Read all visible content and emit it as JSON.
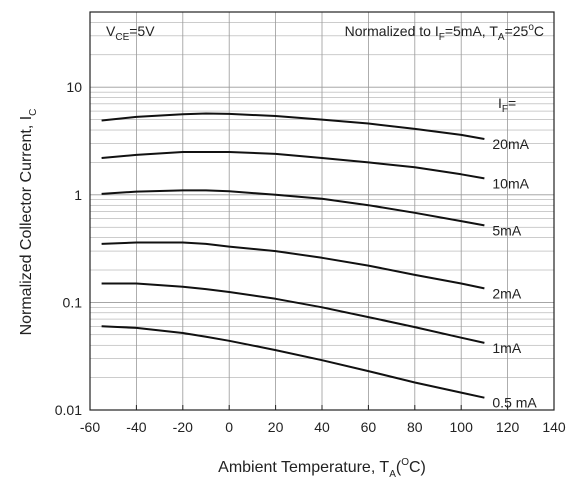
{
  "chart_data": {
    "type": "line",
    "title": "",
    "xlabel": {
      "main": "Ambient Temperature, T",
      "sub": "A",
      "pre": "(",
      "sup": "O",
      "post": "C)"
    },
    "ylabel": {
      "main": "Normalized Collector Current, I",
      "sub": "C"
    },
    "xlim": [
      -60,
      140
    ],
    "ylim": [
      0.01,
      50
    ],
    "yscale": "log",
    "grid": true,
    "x_ticks": [
      "-60",
      "-40",
      "-20",
      "0",
      "20",
      "40",
      "60",
      "80",
      "100",
      "120",
      "140"
    ],
    "y_ticks": [
      "0.01",
      "0.1",
      "1",
      "10"
    ],
    "annotations": {
      "vce": {
        "main": "V",
        "sub": "CE",
        "rest": "=5V"
      },
      "normalized": {
        "p1": "Normalized to I",
        "s1": "F",
        "p2": "=5mA, T",
        "s2": "A",
        "p3": "=25",
        "sup": "o",
        "p4": "C"
      },
      "if_label": {
        "main": "I",
        "sub": "F",
        "rest": "="
      }
    },
    "series": [
      {
        "name": "20mA",
        "x": [
          -55,
          -40,
          -20,
          -10,
          0,
          20,
          40,
          60,
          80,
          100,
          110
        ],
        "y": [
          4.9,
          5.3,
          5.6,
          5.7,
          5.65,
          5.4,
          5.0,
          4.6,
          4.1,
          3.6,
          3.3
        ]
      },
      {
        "name": "10mA",
        "x": [
          -55,
          -40,
          -20,
          -10,
          0,
          20,
          40,
          60,
          80,
          100,
          110
        ],
        "y": [
          2.2,
          2.35,
          2.5,
          2.5,
          2.5,
          2.4,
          2.2,
          2.0,
          1.8,
          1.55,
          1.42
        ]
      },
      {
        "name": "5mA",
        "x": [
          -55,
          -40,
          -20,
          -10,
          0,
          20,
          40,
          60,
          80,
          100,
          110
        ],
        "y": [
          1.02,
          1.07,
          1.1,
          1.1,
          1.08,
          1.0,
          0.92,
          0.8,
          0.68,
          0.57,
          0.52
        ]
      },
      {
        "name": "2mA",
        "x": [
          -55,
          -40,
          -20,
          -10,
          0,
          20,
          40,
          60,
          80,
          100,
          110
        ],
        "y": [
          0.35,
          0.36,
          0.36,
          0.35,
          0.33,
          0.3,
          0.26,
          0.22,
          0.18,
          0.15,
          0.135
        ]
      },
      {
        "name": "1mA",
        "x": [
          -55,
          -40,
          -20,
          -10,
          0,
          20,
          40,
          60,
          80,
          100,
          110
        ],
        "y": [
          0.15,
          0.15,
          0.14,
          0.133,
          0.125,
          0.108,
          0.09,
          0.073,
          0.059,
          0.047,
          0.042
        ]
      },
      {
        "name": "0.5 mA",
        "x": [
          -55,
          -40,
          -20,
          -10,
          0,
          20,
          40,
          60,
          80,
          100,
          110
        ],
        "y": [
          0.06,
          0.058,
          0.052,
          0.048,
          0.044,
          0.036,
          0.029,
          0.023,
          0.018,
          0.0145,
          0.013
        ]
      }
    ],
    "colors": {
      "curve": "#111111",
      "grid": "#9a9a9a",
      "axis": "#222222"
    }
  }
}
